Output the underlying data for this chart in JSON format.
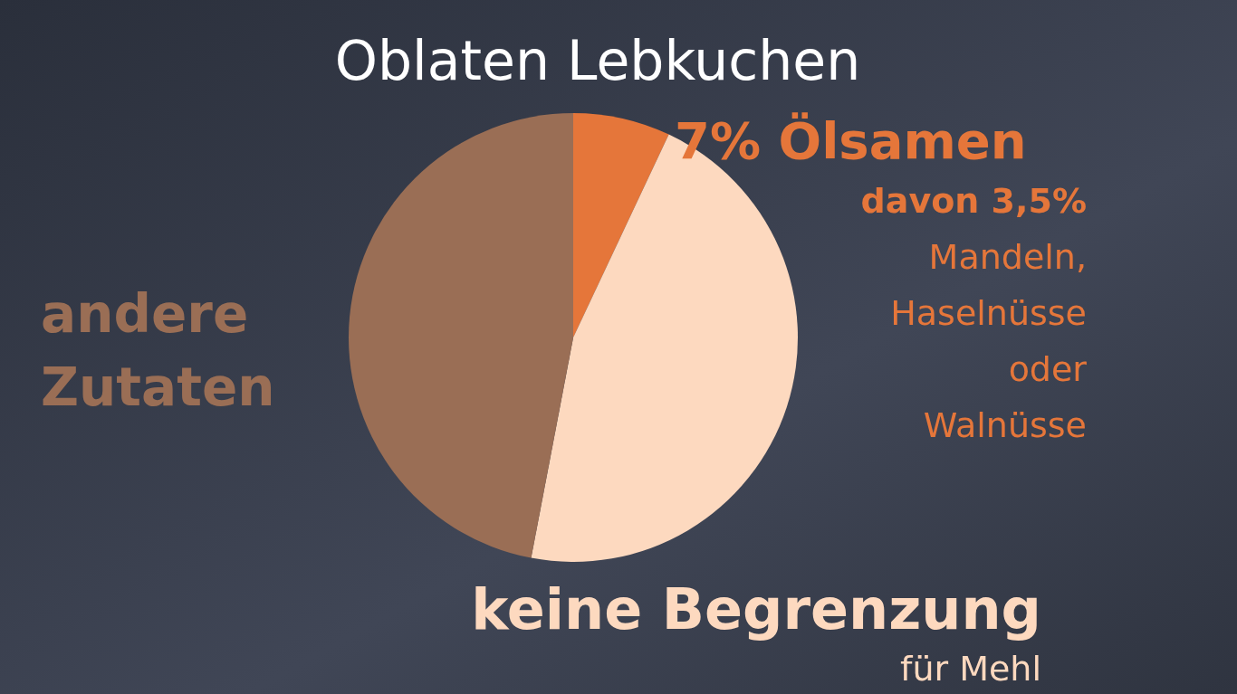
{
  "chart_data": {
    "type": "pie",
    "title": "Oblaten Lebkuchen",
    "categories": [
      "7% Ölsamen",
      "keine Begrenzung",
      "andere Zutaten"
    ],
    "values": [
      7,
      46,
      47
    ],
    "colors": [
      "#e5763a",
      "#fdd9bf",
      "#9a6e55"
    ],
    "annotations": [
      "davon 3,5% Mandeln, Haselnüsse oder Walnüsse",
      "für Mehl"
    ]
  }
}
